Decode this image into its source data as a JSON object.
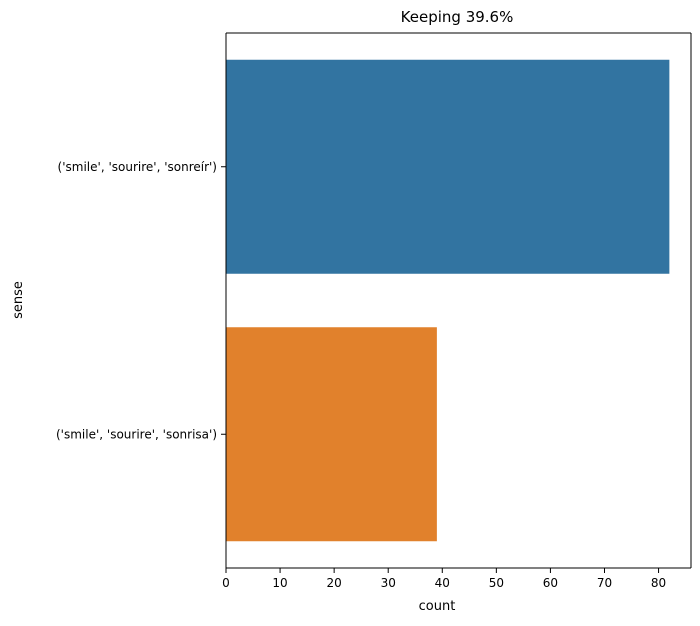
{
  "chart_data": {
    "type": "bar",
    "orientation": "horizontal",
    "title": "Keeping 39.6%",
    "xlabel": "count",
    "ylabel": "sense",
    "categories": [
      "('smile', 'sourire', 'sonreír')",
      "('smile', 'sourire', 'sonrisa')"
    ],
    "values": [
      82,
      39
    ],
    "colors": [
      "#3274a1",
      "#e1812c"
    ],
    "xlim": [
      0,
      86
    ],
    "xticks": [
      0,
      10,
      20,
      30,
      40,
      50,
      60,
      70,
      80
    ],
    "grid": false,
    "legend": "none"
  }
}
